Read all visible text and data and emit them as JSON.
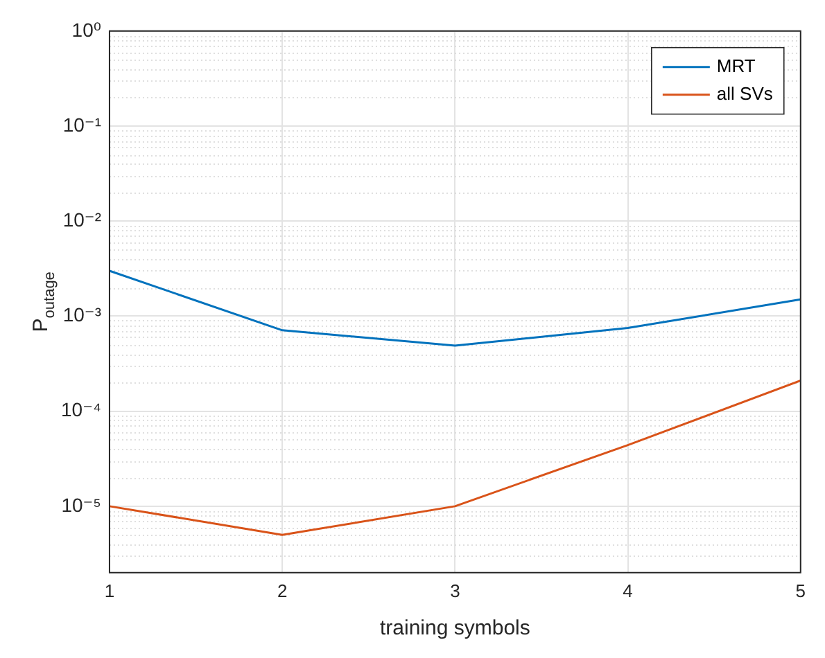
{
  "chart_data": {
    "type": "line",
    "xlabel": "training symbols",
    "ylabel": "P$_{outage}$",
    "x": [
      1,
      2,
      3,
      4,
      5
    ],
    "series": [
      {
        "name": "MRT",
        "color": "#0072bd",
        "values": [
          0.003,
          0.00071,
          0.00049,
          0.00075,
          0.0015
        ]
      },
      {
        "name": "all SVs",
        "color": "#d95319",
        "values": [
          1e-05,
          5e-06,
          1e-05,
          4.4e-05,
          0.00021
        ]
      }
    ],
    "xlim": [
      1,
      5
    ],
    "xticks": [
      1,
      2,
      3,
      4,
      5
    ],
    "ylim": [
      2e-06,
      1
    ],
    "yticks": [
      {
        "value": 1e-05,
        "label": "10⁻⁵"
      },
      {
        "value": 0.0001,
        "label": "10⁻⁴"
      },
      {
        "value": 0.001,
        "label": "10⁻³"
      },
      {
        "value": 0.01,
        "label": "10⁻²"
      },
      {
        "value": 0.1,
        "label": "10⁻¹"
      },
      {
        "value": 1,
        "label": "10⁰"
      }
    ],
    "log": "y",
    "grid": true,
    "legend": "top right",
    "marker": "none",
    "line_style": "solid"
  }
}
